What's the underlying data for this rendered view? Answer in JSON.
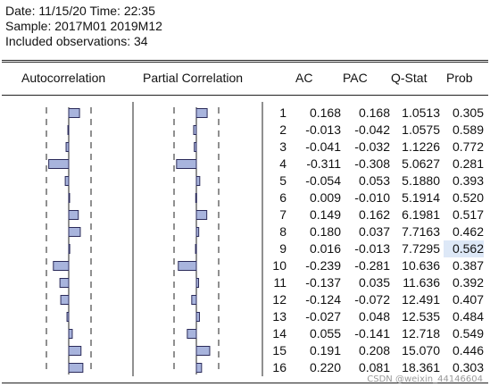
{
  "header": {
    "date_line": "Date: 11/15/20   Time: 22:35",
    "sample_line": "Sample: 2017M01 2019M12",
    "obs_line": "Included observations: 34"
  },
  "columns": {
    "autocorrelation": "Autocorrelation",
    "partial": "Partial Correlation",
    "ac": "AC",
    "pac": "PAC",
    "qstat": "Q-Stat",
    "prob": "Prob"
  },
  "highlight_row": 9,
  "colors": {
    "bar_fill": "#a8b4dd",
    "bar_stroke": "#2b2b5a",
    "highlight": "#dde8f7"
  },
  "rows": [
    {
      "lag": "1",
      "ac": "0.168",
      "pac": "0.168",
      "q": "1.0513",
      "prob": "0.305"
    },
    {
      "lag": "2",
      "ac": "-0.013",
      "pac": "-0.042",
      "q": "1.0575",
      "prob": "0.589"
    },
    {
      "lag": "3",
      "ac": "-0.041",
      "pac": "-0.032",
      "q": "1.1226",
      "prob": "0.772"
    },
    {
      "lag": "4",
      "ac": "-0.311",
      "pac": "-0.308",
      "q": "5.0627",
      "prob": "0.281"
    },
    {
      "lag": "5",
      "ac": "-0.054",
      "pac": "0.053",
      "q": "5.1880",
      "prob": "0.393"
    },
    {
      "lag": "6",
      "ac": "0.009",
      "pac": "-0.010",
      "q": "5.1914",
      "prob": "0.520"
    },
    {
      "lag": "7",
      "ac": "0.149",
      "pac": "0.162",
      "q": "6.1981",
      "prob": "0.517"
    },
    {
      "lag": "8",
      "ac": "0.180",
      "pac": "0.037",
      "q": "7.7163",
      "prob": "0.462"
    },
    {
      "lag": "9",
      "ac": "0.016",
      "pac": "-0.013",
      "q": "7.7295",
      "prob": "0.562"
    },
    {
      "lag": "10",
      "ac": "-0.239",
      "pac": "-0.281",
      "q": "10.636",
      "prob": "0.387"
    },
    {
      "lag": "11",
      "ac": "-0.137",
      "pac": "0.035",
      "q": "11.636",
      "prob": "0.392"
    },
    {
      "lag": "12",
      "ac": "-0.124",
      "pac": "-0.072",
      "q": "12.491",
      "prob": "0.407"
    },
    {
      "lag": "13",
      "ac": "-0.027",
      "pac": "0.048",
      "q": "12.535",
      "prob": "0.484"
    },
    {
      "lag": "14",
      "ac": "0.055",
      "pac": "-0.141",
      "q": "12.718",
      "prob": "0.549"
    },
    {
      "lag": "15",
      "ac": "0.191",
      "pac": "0.208",
      "q": "15.070",
      "prob": "0.446"
    },
    {
      "lag": "16",
      "ac": "0.220",
      "pac": "0.081",
      "q": "18.361",
      "prob": "0.303"
    }
  ],
  "watermark": "CSDN @weixin_44146604"
}
